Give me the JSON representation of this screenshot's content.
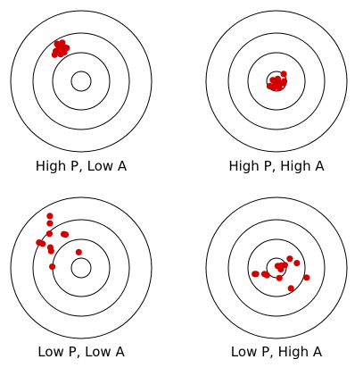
{
  "style": {
    "ring_color": "#000000",
    "dot_color": "#d40000"
  },
  "panels": [
    {
      "caption": "High P, Low A",
      "shots": [
        [
          -1.0,
          1.55
        ],
        [
          -0.9,
          1.35
        ],
        [
          -0.78,
          1.6
        ],
        [
          -0.7,
          1.2
        ],
        [
          -0.85,
          1.12
        ],
        [
          -1.05,
          1.25
        ],
        [
          -1.1,
          1.1
        ],
        [
          -0.72,
          1.42
        ],
        [
          -0.6,
          1.38
        ],
        [
          -0.95,
          1.48
        ]
      ]
    },
    {
      "caption": "High P, High A",
      "shots": [
        [
          -0.15,
          0.05
        ],
        [
          0.05,
          0.1
        ],
        [
          0.3,
          0.3
        ],
        [
          -0.28,
          -0.2
        ],
        [
          -0.1,
          -0.25
        ],
        [
          0.1,
          -0.05
        ],
        [
          0.32,
          0.0
        ],
        [
          0.12,
          -0.28
        ],
        [
          0.28,
          -0.08
        ],
        [
          -0.05,
          -0.08
        ]
      ]
    },
    {
      "caption": "Low P, Low A",
      "shots": [
        [
          -1.3,
          2.15
        ],
        [
          -1.3,
          1.85
        ],
        [
          -0.72,
          1.4
        ],
        [
          -0.65,
          1.38
        ],
        [
          -1.32,
          1.42
        ],
        [
          -1.75,
          1.05
        ],
        [
          -1.6,
          1.0
        ],
        [
          -1.28,
          0.85
        ],
        [
          -1.25,
          0.7
        ],
        [
          -1.2,
          0.05
        ],
        [
          -0.1,
          0.65
        ]
      ]
    },
    {
      "caption": "Low P, High A",
      "shots": [
        [
          0.55,
          0.38
        ],
        [
          0.85,
          0.2
        ],
        [
          0.35,
          0.12
        ],
        [
          0.2,
          0.1
        ],
        [
          0.05,
          0.08
        ],
        [
          -0.9,
          -0.25
        ],
        [
          -0.85,
          -0.25
        ],
        [
          0.18,
          -0.05
        ],
        [
          1.25,
          -0.4
        ],
        [
          0.12,
          -0.42
        ],
        [
          -0.4,
          -0.3
        ],
        [
          -0.5,
          -0.25
        ],
        [
          0.6,
          -0.85
        ],
        [
          0.2,
          0.05
        ]
      ]
    }
  ]
}
